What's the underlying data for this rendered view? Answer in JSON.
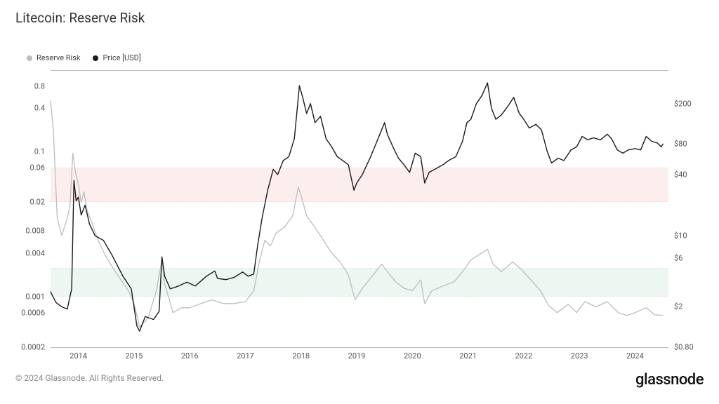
{
  "title": "Litecoin: Reserve Risk",
  "legend": [
    {
      "label": "Reserve Risk",
      "color": "#bdbdbd"
    },
    {
      "label": "Price [USD]",
      "color": "#1a1a1a"
    }
  ],
  "chart": {
    "type": "line",
    "background_color": "#ffffff",
    "border_color": "#bdbdbd",
    "x": {
      "min": 2013.5,
      "max": 2024.6,
      "ticks": [
        2014,
        2015,
        2016,
        2017,
        2018,
        2019,
        2020,
        2021,
        2022,
        2023,
        2024
      ],
      "fontsize": 11,
      "color": "#555555"
    },
    "y_left": {
      "scale": "log",
      "min": 0.0002,
      "max": 1.3,
      "ticks": [
        0.0002,
        0.0006,
        0.001,
        0.004,
        0.008,
        0.02,
        0.06,
        0.1,
        0.4,
        0.8
      ],
      "fontsize": 11,
      "color": "#555555"
    },
    "y_right": {
      "scale": "log",
      "min": 0.8,
      "max": 420,
      "ticks": [
        0.8,
        2,
        6,
        10,
        40,
        80,
        200
      ],
      "tick_labels": [
        "$0.80",
        "$2",
        "$6",
        "$10",
        "$40",
        "$80",
        "$200"
      ],
      "fontsize": 11,
      "color": "#555555"
    },
    "bands": [
      {
        "axis": "left",
        "from": 0.02,
        "to": 0.06,
        "fill": "#fde9e9",
        "edge": "#f3c9c9",
        "opacity": 0.75
      },
      {
        "axis": "left",
        "from": 0.001,
        "to": 0.0025,
        "fill": "#e7f3ec",
        "edge": "#cfe6d7",
        "opacity": 0.75
      }
    ],
    "series": [
      {
        "name": "Reserve Risk",
        "axis": "left",
        "color": "#bdbdbd",
        "line_width": 1.3,
        "data": [
          [
            2013.5,
            0.5
          ],
          [
            2013.55,
            0.2
          ],
          [
            2013.62,
            0.012
          ],
          [
            2013.7,
            0.007
          ],
          [
            2013.8,
            0.012
          ],
          [
            2013.85,
            0.018
          ],
          [
            2013.9,
            0.095
          ],
          [
            2013.95,
            0.05
          ],
          [
            2014.0,
            0.035
          ],
          [
            2014.05,
            0.02
          ],
          [
            2014.1,
            0.028
          ],
          [
            2014.15,
            0.016
          ],
          [
            2014.25,
            0.01
          ],
          [
            2014.35,
            0.006
          ],
          [
            2014.5,
            0.0035
          ],
          [
            2014.7,
            0.002
          ],
          [
            2014.9,
            0.0012
          ],
          [
            2015.0,
            0.0008
          ],
          [
            2015.1,
            0.00038
          ],
          [
            2015.25,
            0.0005
          ],
          [
            2015.4,
            0.0012
          ],
          [
            2015.5,
            0.0032
          ],
          [
            2015.55,
            0.0015
          ],
          [
            2015.7,
            0.0006
          ],
          [
            2015.85,
            0.0007
          ],
          [
            2016.0,
            0.0007
          ],
          [
            2016.2,
            0.0008
          ],
          [
            2016.4,
            0.0009
          ],
          [
            2016.6,
            0.0008
          ],
          [
            2016.8,
            0.0008
          ],
          [
            2017.0,
            0.00085
          ],
          [
            2017.15,
            0.0012
          ],
          [
            2017.25,
            0.003
          ],
          [
            2017.35,
            0.006
          ],
          [
            2017.45,
            0.005
          ],
          [
            2017.55,
            0.0075
          ],
          [
            2017.7,
            0.009
          ],
          [
            2017.85,
            0.013
          ],
          [
            2017.95,
            0.032
          ],
          [
            2018.0,
            0.025
          ],
          [
            2018.1,
            0.013
          ],
          [
            2018.25,
            0.009
          ],
          [
            2018.4,
            0.006
          ],
          [
            2018.55,
            0.004
          ],
          [
            2018.7,
            0.003
          ],
          [
            2018.85,
            0.002
          ],
          [
            2018.97,
            0.0009
          ],
          [
            2019.1,
            0.0013
          ],
          [
            2019.25,
            0.0018
          ],
          [
            2019.45,
            0.0028
          ],
          [
            2019.55,
            0.0022
          ],
          [
            2019.7,
            0.0016
          ],
          [
            2019.85,
            0.0013
          ],
          [
            2020.0,
            0.0012
          ],
          [
            2020.15,
            0.0017
          ],
          [
            2020.22,
            0.0008
          ],
          [
            2020.35,
            0.0012
          ],
          [
            2020.55,
            0.0014
          ],
          [
            2020.75,
            0.0016
          ],
          [
            2020.9,
            0.0022
          ],
          [
            2021.05,
            0.0032
          ],
          [
            2021.25,
            0.004
          ],
          [
            2021.35,
            0.0045
          ],
          [
            2021.45,
            0.0028
          ],
          [
            2021.6,
            0.0022
          ],
          [
            2021.8,
            0.003
          ],
          [
            2021.95,
            0.0024
          ],
          [
            2022.1,
            0.0018
          ],
          [
            2022.3,
            0.0012
          ],
          [
            2022.45,
            0.00075
          ],
          [
            2022.6,
            0.0006
          ],
          [
            2022.8,
            0.00078
          ],
          [
            2022.95,
            0.0006
          ],
          [
            2023.1,
            0.00085
          ],
          [
            2023.3,
            0.00072
          ],
          [
            2023.5,
            0.00085
          ],
          [
            2023.7,
            0.0006
          ],
          [
            2023.85,
            0.00055
          ],
          [
            2024.0,
            0.0006
          ],
          [
            2024.2,
            0.0007
          ],
          [
            2024.35,
            0.00056
          ],
          [
            2024.5,
            0.00055
          ]
        ]
      },
      {
        "name": "Price [USD]",
        "axis": "right",
        "color": "#1a1a1a",
        "line_width": 1.4,
        "data": [
          [
            2013.5,
            2.8
          ],
          [
            2013.6,
            2.2
          ],
          [
            2013.7,
            2.0
          ],
          [
            2013.8,
            1.9
          ],
          [
            2013.88,
            3.0
          ],
          [
            2013.92,
            35.0
          ],
          [
            2013.96,
            22.0
          ],
          [
            2014.0,
            24.0
          ],
          [
            2014.05,
            16.0
          ],
          [
            2014.12,
            20.0
          ],
          [
            2014.2,
            13.0
          ],
          [
            2014.3,
            10.0
          ],
          [
            2014.45,
            9.0
          ],
          [
            2014.6,
            6.5
          ],
          [
            2014.8,
            4.0
          ],
          [
            2014.95,
            3.0
          ],
          [
            2015.05,
            1.3
          ],
          [
            2015.1,
            1.15
          ],
          [
            2015.2,
            1.6
          ],
          [
            2015.35,
            1.5
          ],
          [
            2015.45,
            1.8
          ],
          [
            2015.5,
            6.2
          ],
          [
            2015.55,
            4.0
          ],
          [
            2015.65,
            3.0
          ],
          [
            2015.8,
            3.2
          ],
          [
            2015.95,
            3.5
          ],
          [
            2016.1,
            3.2
          ],
          [
            2016.3,
            4.0
          ],
          [
            2016.45,
            4.5
          ],
          [
            2016.5,
            3.8
          ],
          [
            2016.65,
            3.7
          ],
          [
            2016.8,
            3.9
          ],
          [
            2016.95,
            4.4
          ],
          [
            2017.05,
            4.0
          ],
          [
            2017.15,
            4.2
          ],
          [
            2017.22,
            8.0
          ],
          [
            2017.3,
            15.0
          ],
          [
            2017.4,
            28.0
          ],
          [
            2017.5,
            45.0
          ],
          [
            2017.58,
            40.0
          ],
          [
            2017.68,
            55.0
          ],
          [
            2017.78,
            60.0
          ],
          [
            2017.88,
            90.0
          ],
          [
            2017.97,
            300.0
          ],
          [
            2018.03,
            230.0
          ],
          [
            2018.1,
            160.0
          ],
          [
            2018.17,
            200.0
          ],
          [
            2018.25,
            130.0
          ],
          [
            2018.35,
            150.0
          ],
          [
            2018.45,
            90.0
          ],
          [
            2018.55,
            75.0
          ],
          [
            2018.65,
            60.0
          ],
          [
            2018.75,
            55.0
          ],
          [
            2018.85,
            50.0
          ],
          [
            2018.95,
            28.0
          ],
          [
            2019.0,
            33.0
          ],
          [
            2019.1,
            40.0
          ],
          [
            2019.25,
            60.0
          ],
          [
            2019.4,
            95.0
          ],
          [
            2019.5,
            130.0
          ],
          [
            2019.55,
            100.0
          ],
          [
            2019.65,
            75.0
          ],
          [
            2019.75,
            58.0
          ],
          [
            2019.85,
            50.0
          ],
          [
            2019.95,
            42.0
          ],
          [
            2020.05,
            65.0
          ],
          [
            2020.15,
            60.0
          ],
          [
            2020.22,
            33.0
          ],
          [
            2020.3,
            42.0
          ],
          [
            2020.4,
            45.0
          ],
          [
            2020.55,
            50.0
          ],
          [
            2020.65,
            55.0
          ],
          [
            2020.78,
            60.0
          ],
          [
            2020.9,
            85.0
          ],
          [
            2020.98,
            130.0
          ],
          [
            2021.05,
            140.0
          ],
          [
            2021.15,
            200.0
          ],
          [
            2021.25,
            240.0
          ],
          [
            2021.35,
            320.0
          ],
          [
            2021.42,
            180.0
          ],
          [
            2021.5,
            140.0
          ],
          [
            2021.6,
            155.0
          ],
          [
            2021.72,
            190.0
          ],
          [
            2021.82,
            230.0
          ],
          [
            2021.92,
            160.0
          ],
          [
            2022.0,
            140.0
          ],
          [
            2022.1,
            115.0
          ],
          [
            2022.22,
            125.0
          ],
          [
            2022.32,
            110.0
          ],
          [
            2022.42,
            68.0
          ],
          [
            2022.5,
            52.0
          ],
          [
            2022.62,
            58.0
          ],
          [
            2022.72,
            55.0
          ],
          [
            2022.85,
            70.0
          ],
          [
            2022.95,
            75.0
          ],
          [
            2023.05,
            95.0
          ],
          [
            2023.15,
            88.0
          ],
          [
            2023.25,
            92.0
          ],
          [
            2023.38,
            88.0
          ],
          [
            2023.5,
            100.0
          ],
          [
            2023.58,
            90.0
          ],
          [
            2023.68,
            70.0
          ],
          [
            2023.78,
            65.0
          ],
          [
            2023.88,
            70.0
          ],
          [
            2024.0,
            72.0
          ],
          [
            2024.1,
            70.0
          ],
          [
            2024.2,
            95.0
          ],
          [
            2024.3,
            85.0
          ],
          [
            2024.4,
            82.0
          ],
          [
            2024.47,
            75.0
          ],
          [
            2024.5,
            80.0
          ]
        ]
      }
    ]
  },
  "copyright": "© 2024 Glassnode. All Rights Reserved.",
  "brand": "glassnode"
}
